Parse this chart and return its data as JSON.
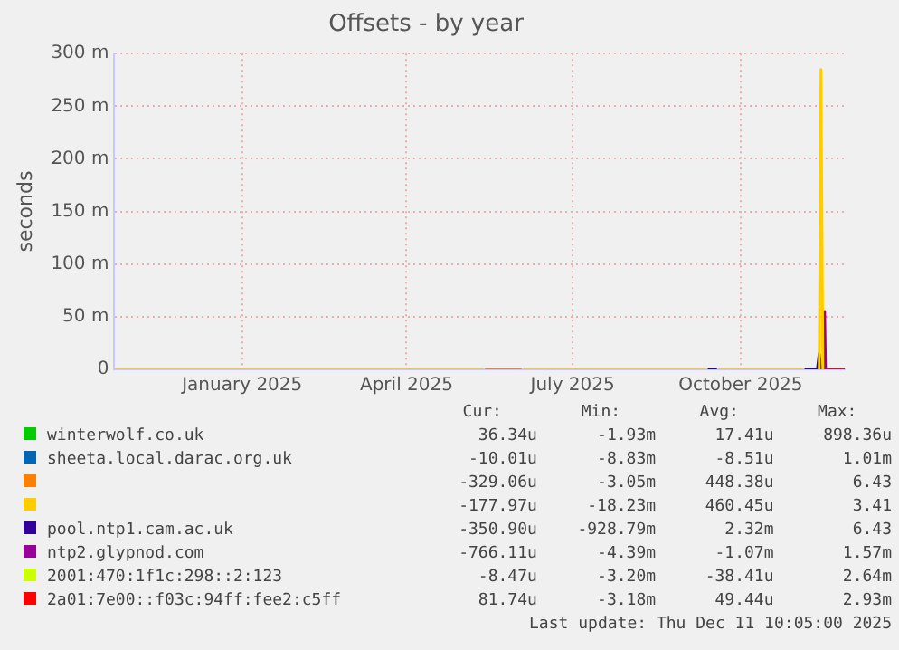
{
  "chart_data": {
    "type": "line",
    "title": "Offsets - by year",
    "ylabel": "seconds",
    "xlim": [
      "2024-11-06",
      "2025-12-11"
    ],
    "xticks": [
      {
        "value": "2025-01-15",
        "label": "January 2025"
      },
      {
        "value": "2025-04-15",
        "label": "April 2025"
      },
      {
        "value": "2025-07-15",
        "label": "July 2025"
      },
      {
        "value": "2025-10-15",
        "label": "October 2025"
      }
    ],
    "ylim": [
      0,
      300
    ],
    "yticks": [
      0,
      {
        "value": 50,
        "label": "50 m"
      },
      {
        "value": 100,
        "label": "100 m"
      },
      {
        "value": 150,
        "label": "150 m"
      },
      {
        "value": 200,
        "label": "200 m"
      },
      {
        "value": 250,
        "label": "250 m"
      },
      {
        "value": 300,
        "label": "300 m"
      }
    ],
    "grid": true,
    "legend": "bottom",
    "marker": "none",
    "series": [
      {
        "name": "winterwolf.co.uk",
        "color": "#00cc00"
      },
      {
        "name": "sheeta.local.darac.org.uk",
        "color": "#0066b3"
      },
      {
        "name": null,
        "color": "#ff8000",
        "x": [
          "2025-05-28",
          "2025-06-17"
        ],
        "values": [
          0,
          0
        ]
      },
      {
        "name": null,
        "color": "#ffcc00",
        "x": [
          "2024-11-06",
          "2025-05-27",
          "2025-05-28",
          "2025-06-18",
          "2025-09-26",
          "2025-09-27",
          "2025-10-03",
          "2025-11-18",
          "2025-11-19",
          "2025-11-27",
          "2025-11-28",
          "2025-11-29"
        ],
        "values": [
          0,
          0,
          null,
          0,
          0,
          null,
          0,
          0,
          null,
          0,
          285,
          0
        ]
      },
      {
        "name": "pool.ntp1.cam.ac.uk",
        "color": "#330099",
        "x": [
          "2025-09-27",
          "2025-10-02",
          "2025-10-10",
          "2025-11-19",
          "2025-11-26",
          "2025-11-27",
          "2025-11-28"
        ],
        "values": [
          0,
          0,
          null,
          0,
          0,
          15,
          0
        ]
      },
      {
        "name": "ntp2.glypnod.com",
        "color": "#990099",
        "x": [
          "2025-11-29T12:00",
          "2025-11-30",
          "2025-11-30T12:00"
        ],
        "values": [
          0,
          55,
          0
        ]
      },
      {
        "name": "2001:470:1f1c:298::2:123",
        "color": "#ccff00"
      },
      {
        "name": "2a01:7e00::f03c:94ff:fee2:c5ff",
        "color": "#ff0000",
        "x": [
          "2025-12-01",
          "2025-12-11"
        ],
        "values": [
          0,
          0
        ]
      }
    ],
    "annotations": [
      "Cur:",
      "Min:",
      "Avg:",
      "Max:",
      "36.34u",
      "-1.93m",
      "17.41u",
      "898.36u",
      "-10.01u",
      "-8.83m",
      "-8.51u",
      "1.01m",
      "-329.06u",
      "-3.05m",
      "448.38u",
      "6.43",
      "-177.97u",
      "-18.23m",
      "460.45u",
      "3.41",
      "-350.90u",
      "-928.79m",
      "2.32m",
      "6.43",
      "-766.11u",
      "-4.39m",
      "-1.07m",
      "1.57m",
      "-8.47u",
      "-3.20m",
      "-38.41u",
      "2.64m",
      "81.74u",
      "-3.18m",
      "49.44u",
      "2.93m",
      "Last update: Thu Dec 11 10:05:00 2025"
    ]
  }
}
